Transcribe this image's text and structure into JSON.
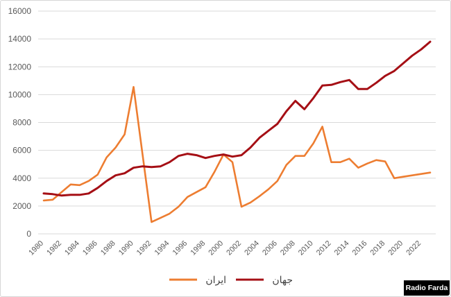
{
  "chart_data": {
    "type": "line",
    "title": "",
    "xlabel": "",
    "ylabel": "",
    "ylim": [
      0,
      16000
    ],
    "yticks": [
      0,
      2000,
      4000,
      6000,
      8000,
      10000,
      12000,
      14000,
      16000
    ],
    "xlim": [
      1980,
      2023
    ],
    "xticks": [
      1980,
      1982,
      1984,
      1986,
      1988,
      1990,
      1992,
      1994,
      1996,
      1998,
      2000,
      2002,
      2004,
      2006,
      2008,
      2010,
      2012,
      2014,
      2016,
      2018,
      2020,
      2022
    ],
    "grid": "horizontal",
    "legend_position": "bottom-center",
    "series": [
      {
        "name": "ایران",
        "color": "#ED7D31",
        "x": [
          1980,
          1981,
          1982,
          1983,
          1984,
          1985,
          1986,
          1987,
          1988,
          1989,
          1990,
          1992,
          1993,
          1994,
          1995,
          1996,
          1997,
          1998,
          1999,
          2000,
          2001,
          2002,
          2003,
          2004,
          2005,
          2006,
          2007,
          2008,
          2009,
          2010,
          2011,
          2012,
          2013,
          2014,
          2015,
          2016,
          2017,
          2018,
          2019,
          2020,
          2021,
          2022,
          2023
        ],
        "values": [
          2400,
          2450,
          3000,
          3550,
          3500,
          3800,
          4250,
          5500,
          6200,
          7150,
          10550,
          850,
          1150,
          1450,
          1950,
          2650,
          3000,
          3350,
          4450,
          5700,
          5150,
          1950,
          2250,
          2700,
          3200,
          3800,
          4950,
          5600,
          5600,
          6500,
          7700,
          5150,
          5150,
          5400,
          4750,
          5050,
          5300,
          5200,
          4000,
          4100,
          4200,
          4300,
          4400
        ]
      },
      {
        "name": "جهان",
        "color": "#A50F15",
        "x": [
          1980,
          1981,
          1982,
          1983,
          1984,
          1985,
          1986,
          1987,
          1988,
          1989,
          1990,
          1991,
          1992,
          1993,
          1994,
          1995,
          1996,
          1997,
          1998,
          1999,
          2000,
          2001,
          2002,
          2003,
          2004,
          2005,
          2006,
          2007,
          2008,
          2009,
          2010,
          2011,
          2012,
          2013,
          2014,
          2015,
          2016,
          2017,
          2018,
          2019,
          2020,
          2021,
          2022,
          2023
        ],
        "values": [
          2900,
          2850,
          2750,
          2800,
          2800,
          2900,
          3300,
          3800,
          4200,
          4350,
          4750,
          4850,
          4800,
          4850,
          5150,
          5600,
          5750,
          5650,
          5450,
          5600,
          5700,
          5550,
          5650,
          6200,
          6900,
          7400,
          7900,
          8800,
          9550,
          8950,
          9750,
          10650,
          10700,
          10900,
          11050,
          10400,
          10400,
          10850,
          11350,
          11700,
          12250,
          12800,
          13250,
          13800
        ]
      }
    ]
  },
  "legend": {
    "items": [
      {
        "label": "ایران",
        "color": "#ED7D31"
      },
      {
        "label": "جهان",
        "color": "#A50F15"
      }
    ]
  },
  "branding": {
    "label": "Radio Farda"
  }
}
